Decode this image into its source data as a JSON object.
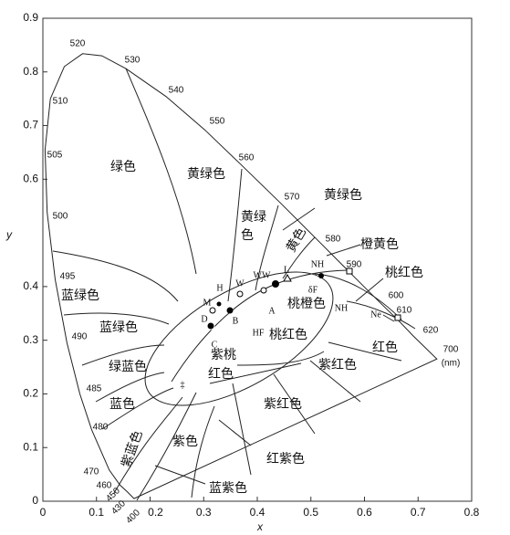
{
  "axes": {
    "x_label": "x",
    "y_label": "y",
    "x_ticks": [
      "0",
      "0.1",
      "0.2",
      "0.3",
      "0.4",
      "0.5",
      "0.6",
      "0.7",
      "0.8"
    ],
    "y_ticks": [
      "0",
      "0.1",
      "0.2",
      "0.3",
      "0.4",
      "0.6",
      "0.7",
      "0.8",
      "0.9"
    ]
  },
  "wavelengths": [
    "520",
    "530",
    "540",
    "550",
    "560",
    "570",
    "580",
    "590",
    "600",
    "610",
    "620",
    "700",
    "(nm)",
    "510",
    "505",
    "500",
    "495",
    "490",
    "485",
    "480",
    "470",
    "460",
    "450",
    "430",
    "400"
  ],
  "regions": [
    "绿色",
    "黄绿色",
    "黄绿",
    "色",
    "黄色",
    "黄绿色",
    "橙黄色",
    "桃红色",
    "蓝绿色",
    "蓝绿色",
    "绿蓝色",
    "蓝色",
    "紫蓝色",
    "紫色",
    "蓝紫色",
    "红紫色",
    "紫红色",
    "紫红色",
    "红色",
    "桃红色",
    "紫桃",
    "红色",
    "桃橙色"
  ],
  "points": [
    "H",
    "M",
    "W",
    "WW",
    "L",
    "D",
    "B",
    "A",
    "HF",
    "C",
    "NH",
    "NH",
    "Ne",
    "‡",
    "δF"
  ]
}
